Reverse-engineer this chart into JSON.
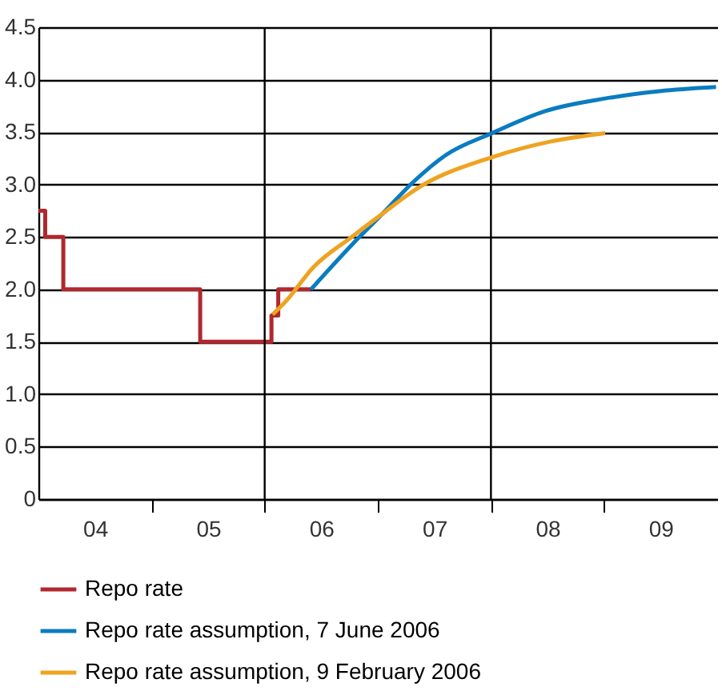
{
  "chart_data": {
    "type": "line",
    "xlim": [
      2003.5,
      2009.5
    ],
    "xticks": [
      {
        "value": 2004,
        "label": "04"
      },
      {
        "value": 2004.5,
        "label": null
      },
      {
        "value": 2005,
        "label": "05"
      },
      {
        "value": 2005.5,
        "label": null
      },
      {
        "value": 2006,
        "label": "06"
      },
      {
        "value": 2006.5,
        "label": null
      },
      {
        "value": 2007,
        "label": "07"
      },
      {
        "value": 2007.5,
        "label": null
      },
      {
        "value": 2008,
        "label": "08"
      },
      {
        "value": 2008.5,
        "label": null
      },
      {
        "value": 2009,
        "label": "09"
      }
    ],
    "ylim": [
      0,
      4.5
    ],
    "yticks": [
      0,
      0.5,
      {
        "value": 1,
        "label": "1.0"
      },
      1.5,
      {
        "value": 2,
        "label": "2.0"
      },
      2.5,
      {
        "value": 3,
        "label": "3.0"
      },
      3.5,
      {
        "value": 4,
        "label": "4.0"
      },
      4.5
    ],
    "grid": "y",
    "legend": "bottom",
    "marker": "none",
    "line_style": "solid",
    "ref_lines": [
      {
        "axis": "x",
        "value": 2005.5,
        "color": "#000000"
      },
      {
        "axis": "x",
        "value": 2007.5,
        "color": "#000000"
      }
    ],
    "series": [
      {
        "name": "Repo rate",
        "type": "step",
        "color": "#b0282e",
        "x": [
          2003.5,
          2003.56,
          2003.72,
          2004.93,
          2005.56,
          2005.62,
          2005.91
        ],
        "values": [
          2.75,
          2.5,
          2.0,
          1.5,
          1.75,
          2.0,
          2.0
        ]
      },
      {
        "name": "Repo rate assumption, 7 June 2006",
        "type": "line",
        "color": "#0a7cc1",
        "x": [
          2005.91,
          2006.32,
          2006.54,
          2006.81,
          2007.1,
          2007.51,
          2007.98,
          2008.51,
          2008.99,
          2009.49
        ],
        "values": [
          2.0,
          2.48,
          2.72,
          3.02,
          3.28,
          3.49,
          3.7,
          3.82,
          3.89,
          3.93
        ]
      },
      {
        "name": "Repo rate assumption, 9 February 2006",
        "type": "line",
        "color": "#eea321",
        "x": [
          2005.57,
          2005.69,
          2005.93,
          2006.27,
          2006.54,
          2006.86,
          2007.51,
          2008.03,
          2008.51
        ],
        "values": [
          1.76,
          1.89,
          2.21,
          2.5,
          2.72,
          2.97,
          3.26,
          3.41,
          3.49
        ]
      }
    ]
  }
}
